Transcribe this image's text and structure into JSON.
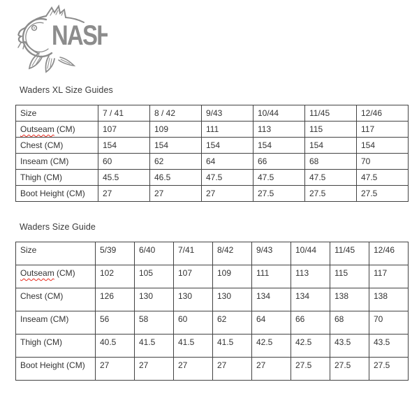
{
  "brand": {
    "name": "NASH"
  },
  "colors": {
    "logo_gray": "#8c8c8c",
    "table_text": "#333333",
    "table_border": "#424242",
    "spellcheck_underline": "#e8291c",
    "background": "#ffffff"
  },
  "xl_table": {
    "title": "Waders XL Size Guides",
    "header": [
      "Size",
      "7 / 41",
      "8 / 42",
      "9/43",
      "10/44",
      "11/45",
      "12/46"
    ],
    "rows": [
      {
        "label": "Outseam",
        "unit": " (CM)",
        "misspelled": true,
        "values": [
          "107",
          "109",
          "111",
          "113",
          "115",
          "117"
        ]
      },
      {
        "label": "Chest",
        "unit": " (CM)",
        "misspelled": false,
        "values": [
          "154",
          "154",
          "154",
          "154",
          "154",
          "154"
        ]
      },
      {
        "label": "Inseam",
        "unit": " (CM)",
        "misspelled": false,
        "values": [
          "60",
          "62",
          "64",
          "66",
          "68",
          "70"
        ]
      },
      {
        "label": "Thigh",
        "unit": " (CM)",
        "misspelled": false,
        "values": [
          "45.5",
          "46.5",
          "47.5",
          "47.5",
          "47.5",
          "47.5"
        ]
      },
      {
        "label": "Boot Height",
        "unit": " (CM)",
        "misspelled": false,
        "values": [
          "27",
          "27",
          "27",
          "27.5",
          "27.5",
          "27.5"
        ]
      }
    ]
  },
  "std_table": {
    "title": "Waders Size Guide",
    "header": [
      "Size",
      "5/39",
      "6/40",
      "7/41",
      "8/42",
      "9/43",
      "10/44",
      "11/45",
      "12/46"
    ],
    "rows": [
      {
        "label": "Outseam",
        "unit": " (CM)",
        "misspelled": true,
        "values": [
          "102",
          "105",
          "107",
          "109",
          "111",
          "113",
          "115",
          "117"
        ]
      },
      {
        "label": "Chest",
        "unit": " (CM)",
        "misspelled": false,
        "values": [
          "126",
          "130",
          "130",
          "130",
          "134",
          "134",
          "138",
          "138"
        ]
      },
      {
        "label": "Inseam",
        "unit": " (CM)",
        "misspelled": false,
        "values": [
          "56",
          "58",
          "60",
          "62",
          "64",
          "66",
          "68",
          "70"
        ]
      },
      {
        "label": "Thigh",
        "unit": " (CM)",
        "misspelled": false,
        "values": [
          "40.5",
          "41.5",
          "41.5",
          "41.5",
          "42.5",
          "42.5",
          "43.5",
          "43.5"
        ]
      },
      {
        "label": "Boot Height",
        "unit": " (CM)",
        "misspelled": false,
        "values": [
          "27",
          "27",
          "27",
          "27",
          "27",
          "27.5",
          "27.5",
          "27.5"
        ]
      }
    ]
  }
}
